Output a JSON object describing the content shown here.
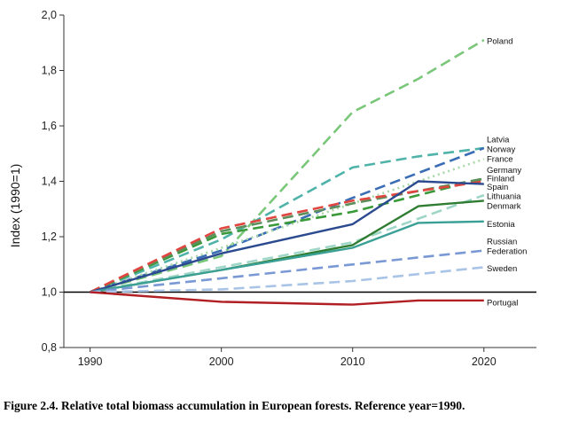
{
  "caption": "Figure 2.4. Relative total biomass accumulation in European forests. Reference year=1990.",
  "chart_data": {
    "type": "line",
    "title": "",
    "xlabel": "",
    "ylabel": "Index (1990=1)",
    "xlim": [
      1988,
      2024
    ],
    "ylim": [
      0.8,
      2.0
    ],
    "xticks": [
      "1990",
      "2000",
      "2010",
      "2020"
    ],
    "yticks": [
      "0,8",
      "1,0",
      "1,2",
      "1,4",
      "1,6",
      "1,8",
      "2,0"
    ],
    "grid": false,
    "legend": "direct labels at right end of lines",
    "reference_line": {
      "y": 1.0,
      "color": "#000000"
    },
    "series": [
      {
        "name": "Poland",
        "color": "#7ac77a",
        "style": "dash",
        "label_y": 1.905,
        "x": [
          1990,
          2000,
          2010,
          2015,
          2020
        ],
        "y": [
          1.0,
          1.13,
          1.65,
          1.77,
          1.91
        ]
      },
      {
        "name": "Latvia",
        "color": "#4fb3a9",
        "style": "dash",
        "label_y": 1.55,
        "x": [
          1990,
          2000,
          2010,
          2015,
          2020
        ],
        "y": [
          1.0,
          1.19,
          1.45,
          1.49,
          1.52
        ]
      },
      {
        "name": "Norway",
        "color": "#3b6db5",
        "style": "dash",
        "label_y": 1.515,
        "x": [
          1990,
          2000,
          2010,
          2020
        ],
        "y": [
          1.0,
          1.15,
          1.34,
          1.52
        ]
      },
      {
        "name": "France",
        "color": "#a8d8a8",
        "style": "dot",
        "label_y": 1.48,
        "x": [
          1990,
          2020
        ],
        "y": [
          1.0,
          1.48
        ]
      },
      {
        "name": "Germany",
        "color": "#3a9a3a",
        "style": "dash",
        "label_y": 1.44,
        "x": [
          1990,
          2000,
          2010,
          2020
        ],
        "y": [
          1.0,
          1.21,
          1.29,
          1.41
        ]
      },
      {
        "name": "Finland",
        "color": "#5d8f5d",
        "style": "dash",
        "label_y": 1.41,
        "x": [
          1990,
          2000,
          2010,
          2020
        ],
        "y": [
          1.0,
          1.22,
          1.32,
          1.41
        ]
      },
      {
        "name": "Spain",
        "color": "#e0453f",
        "style": "dash",
        "label_y": 1.38,
        "x": [
          1990,
          2000,
          2010,
          2020
        ],
        "y": [
          1.0,
          1.23,
          1.33,
          1.4
        ]
      },
      {
        "name": "Lithuania",
        "color": "#9fd6c8",
        "style": "dash",
        "label_y": 1.345,
        "x": [
          1990,
          2000,
          2010,
          2020
        ],
        "y": [
          1.0,
          1.09,
          1.18,
          1.35
        ]
      },
      {
        "name": "Denmark",
        "color": "#2e7d32",
        "style": "solid",
        "label_y": 1.31,
        "x": [
          1990,
          2000,
          2010,
          2015,
          2020
        ],
        "y": [
          1.0,
          1.08,
          1.17,
          1.31,
          1.33
        ]
      },
      {
        "name": "",
        "color": "#2b4a8f",
        "style": "solid",
        "label_y": null,
        "x": [
          1990,
          2000,
          2010,
          2015,
          2020
        ],
        "y": [
          1.0,
          1.14,
          1.245,
          1.4,
          1.39
        ]
      },
      {
        "name": "Estonia",
        "color": "#3aa096",
        "style": "solid",
        "label_y": 1.245,
        "x": [
          1990,
          2000,
          2010,
          2015,
          2020
        ],
        "y": [
          1.0,
          1.08,
          1.16,
          1.25,
          1.255
        ]
      },
      {
        "name": "Russian\nFederation",
        "color": "#7a99d4",
        "style": "dash",
        "label_y": 1.165,
        "x": [
          1990,
          2000,
          2010,
          2020
        ],
        "y": [
          1.0,
          1.05,
          1.1,
          1.15
        ]
      },
      {
        "name": "Sweden",
        "color": "#a9c4e6",
        "style": "dash",
        "label_y": 1.085,
        "x": [
          1990,
          2000,
          2010,
          2020
        ],
        "y": [
          1.0,
          1.01,
          1.04,
          1.09
        ]
      },
      {
        "name": "Portugal",
        "color": "#b11f24",
        "style": "solid",
        "label_y": 0.962,
        "x": [
          1990,
          2000,
          2010,
          2015,
          2020
        ],
        "y": [
          1.0,
          0.965,
          0.955,
          0.97,
          0.97
        ]
      }
    ]
  }
}
